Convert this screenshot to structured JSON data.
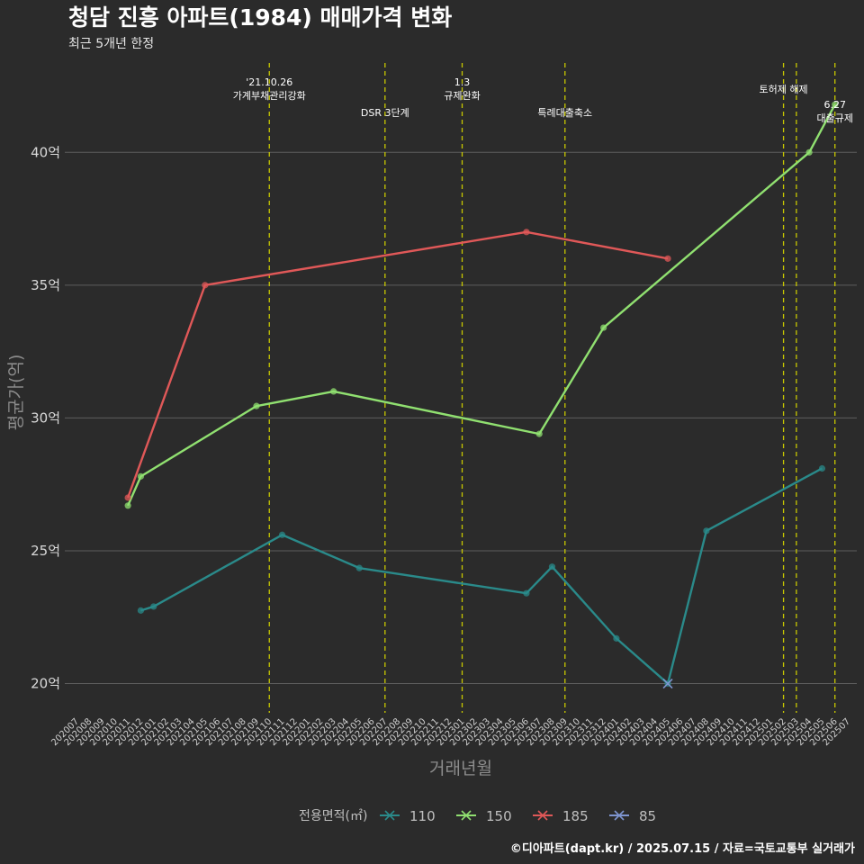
{
  "title": "청담 진흥 아파트(1984) 매매가격 변화",
  "subtitle": "최근 5개년 한정",
  "caption": "©디아파트(dapt.kr) / 2025.07.15 / 자료=국토교통부 실거래가",
  "chart_data": {
    "type": "line",
    "xlabel": "거래년월",
    "ylabel": "평균가(억)",
    "x_categories": [
      "202007",
      "202008",
      "202009",
      "202010",
      "202011",
      "202012",
      "202101",
      "202102",
      "202103",
      "202104",
      "202105",
      "202106",
      "202107",
      "202108",
      "202109",
      "202110",
      "202111",
      "202112",
      "202201",
      "202202",
      "202203",
      "202204",
      "202205",
      "202206",
      "202207",
      "202208",
      "202209",
      "202210",
      "202211",
      "202212",
      "202301",
      "202302",
      "202303",
      "202304",
      "202305",
      "202306",
      "202307",
      "202308",
      "202309",
      "202310",
      "202311",
      "202312",
      "202401",
      "202402",
      "202403",
      "202404",
      "202405",
      "202406",
      "202407",
      "202408",
      "202409",
      "202410",
      "202411",
      "202412",
      "202501",
      "202502",
      "202503",
      "202504",
      "202505",
      "202506",
      "202507"
    ],
    "y_ticks": [
      {
        "value": 20,
        "label": "20억"
      },
      {
        "value": 25,
        "label": "25억"
      },
      {
        "value": 30,
        "label": "30억"
      },
      {
        "value": 35,
        "label": "35억"
      },
      {
        "value": 40,
        "label": "40억"
      }
    ],
    "ylim": [
      18.9,
      43.5
    ],
    "grid": true,
    "legend_title": "전용면적(㎡)",
    "legend_position": "bottom",
    "series": [
      {
        "name": "110",
        "color": "#2a8a8a",
        "points": [
          {
            "x": "202012",
            "y": 22.75
          },
          {
            "x": "202101",
            "y": 22.9
          },
          {
            "x": "202111",
            "y": 25.6
          },
          {
            "x": "202205",
            "y": 24.35
          },
          {
            "x": "202306",
            "y": 23.4
          },
          {
            "x": "202308",
            "y": 24.4
          },
          {
            "x": "202401",
            "y": 21.7
          },
          {
            "x": "202405",
            "y": 20.0
          },
          {
            "x": "202408",
            "y": 25.75
          },
          {
            "x": "202505",
            "y": 28.1
          }
        ]
      },
      {
        "name": "150",
        "color": "#90e070",
        "points": [
          {
            "x": "202011",
            "y": 26.7
          },
          {
            "x": "202012",
            "y": 27.8
          },
          {
            "x": "202109",
            "y": 30.45
          },
          {
            "x": "202203",
            "y": 31.0
          },
          {
            "x": "202307",
            "y": 29.4
          },
          {
            "x": "202312",
            "y": 33.4
          },
          {
            "x": "202504",
            "y": 40.0
          },
          {
            "x": "202506",
            "y": 41.8
          }
        ]
      },
      {
        "name": "185",
        "color": "#e05858",
        "points": [
          {
            "x": "202011",
            "y": 27.0
          },
          {
            "x": "202105",
            "y": 35.0
          },
          {
            "x": "202306",
            "y": 37.0
          },
          {
            "x": "202405",
            "y": 36.0
          }
        ]
      },
      {
        "name": "85",
        "color": "#7e95d0",
        "points": [
          {
            "x": "202405",
            "y": 20.0
          }
        ]
      }
    ],
    "annotations": [
      {
        "x": "202110",
        "lines": [
          "'21.10.26",
          "가계부채관리강화"
        ],
        "row": 1
      },
      {
        "x": "202207",
        "lines": [
          "DSR 3단계"
        ],
        "row": 2
      },
      {
        "x": "202301",
        "lines": [
          "1.3",
          "규제완화"
        ],
        "row": 1
      },
      {
        "x": "202309",
        "lines": [
          "특례대출축소"
        ],
        "row": 2
      },
      {
        "x": "202502",
        "lines": [
          "토허제 해제"
        ],
        "row": 1
      },
      {
        "x": "202503",
        "lines": [],
        "row": 1
      },
      {
        "x": "202506",
        "lines": [
          "6.27",
          "대출규제"
        ],
        "row": 3
      }
    ]
  }
}
